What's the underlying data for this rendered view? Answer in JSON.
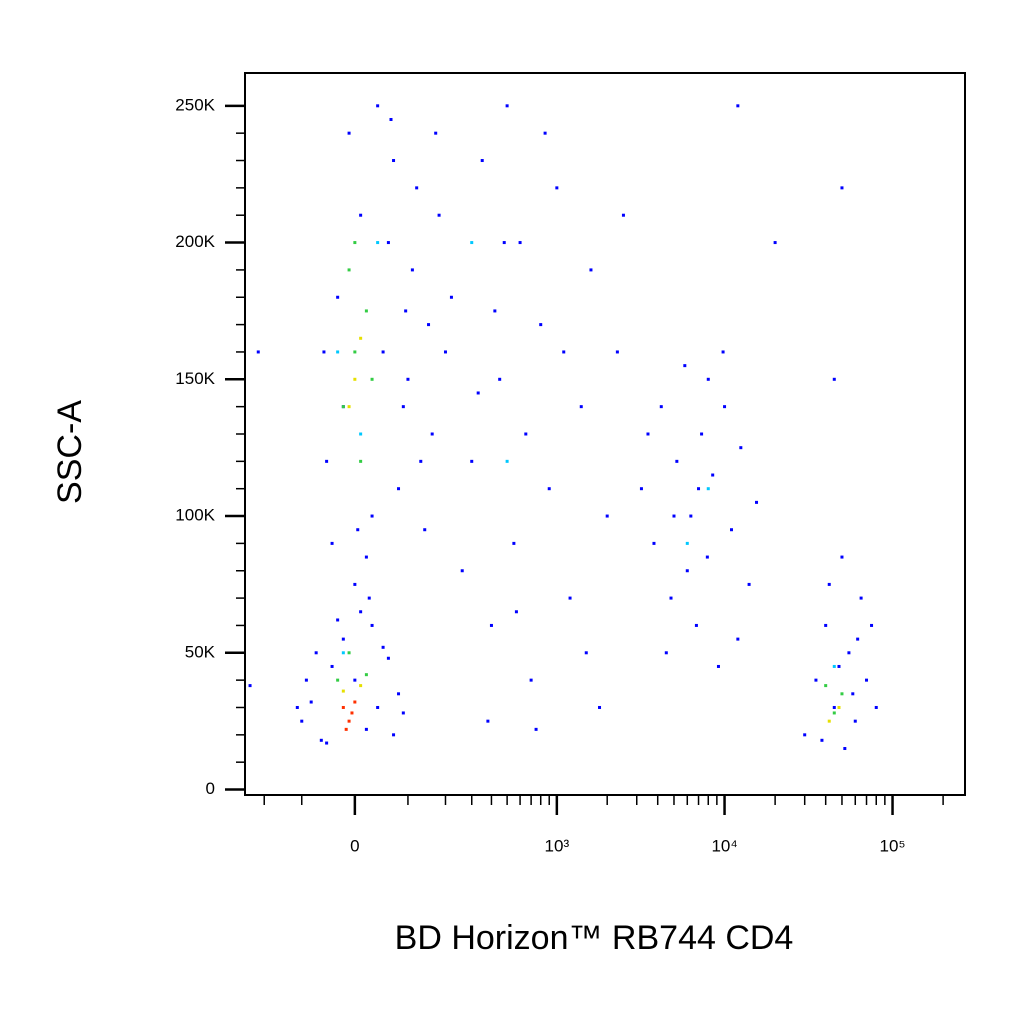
{
  "chart_data": {
    "type": "scatter",
    "x_label": "BD Horizon™ RB744 CD4",
    "y_label": "SSC-A",
    "xscale": "asinh",
    "xlim": [
      -270,
      270000
    ],
    "ylim": [
      -2000,
      262000
    ],
    "xticks": [
      0,
      {
        "value": 1000,
        "label": "10³"
      },
      {
        "value": 10000,
        "label": "10⁴"
      },
      {
        "value": 100000,
        "label": "10⁵"
      }
    ],
    "xminor_ticks": [
      -200,
      -100,
      100,
      200,
      300,
      400,
      500,
      600,
      700,
      800,
      900,
      2000,
      3000,
      4000,
      5000,
      6000,
      7000,
      8000,
      9000,
      20000,
      30000,
      40000,
      50000,
      60000,
      70000,
      80000,
      90000,
      200000
    ],
    "yticks": [
      0,
      {
        "value": 50000,
        "label": "50K"
      },
      {
        "value": 100000,
        "label": "100K"
      },
      {
        "value": 150000,
        "label": "150K"
      },
      {
        "value": 200000,
        "label": "200K"
      },
      {
        "value": 250000,
        "label": "250K"
      }
    ],
    "yminor_ticks": [
      10000,
      20000,
      30000,
      40000,
      60000,
      70000,
      80000,
      90000,
      110000,
      120000,
      130000,
      140000,
      160000,
      170000,
      180000,
      190000,
      210000,
      220000,
      230000,
      240000
    ],
    "series": [
      {
        "color": "#0000ff",
        "x": [
          -100,
          -80,
          -60,
          -40,
          -20,
          0,
          20,
          40,
          60,
          80,
          -90,
          -70,
          30,
          70,
          -50,
          10,
          50,
          90,
          -30,
          -110,
          -50,
          -30,
          -10,
          10,
          30,
          50,
          70,
          90,
          110,
          130,
          150,
          -40,
          0,
          20,
          40,
          60,
          80,
          100,
          120,
          -20,
          140,
          25,
          -55,
          65,
          95,
          160,
          180,
          200,
          170,
          5,
          220,
          300,
          350,
          400,
          450,
          500,
          550,
          600,
          700,
          800,
          900,
          1000,
          1200,
          1400,
          1600,
          1800,
          2000,
          2300,
          260,
          380,
          480,
          650,
          750,
          1100,
          1500,
          2500,
          330,
          420,
          570,
          850,
          3200,
          3800,
          4200,
          4800,
          5200,
          5800,
          6300,
          6800,
          7300,
          7900,
          8500,
          9200,
          10000,
          11000,
          12500,
          14000,
          15500,
          4500,
          6000,
          9800,
          3500,
          8000,
          5000,
          7000,
          12000,
          30000,
          35000,
          40000,
          45000,
          50000,
          55000,
          60000,
          65000,
          70000,
          80000,
          38000,
          48000,
          58000,
          42000,
          52000,
          62000,
          75000,
          50000,
          45000,
          20000,
          -250,
          -220,
          12000
        ],
        "y": [
          25000,
          32000,
          18000,
          45000,
          55000,
          40000,
          22000,
          30000,
          48000,
          35000,
          40000,
          50000,
          60000,
          20000,
          17000,
          65000,
          52000,
          28000,
          62000,
          30000,
          120000,
          180000,
          240000,
          210000,
          100000,
          160000,
          230000,
          140000,
          190000,
          120000,
          170000,
          90000,
          75000,
          85000,
          250000,
          200000,
          110000,
          150000,
          220000,
          140000,
          95000,
          70000,
          160000,
          245000,
          175000,
          130000,
          210000,
          160000,
          240000,
          95000,
          180000,
          120000,
          230000,
          60000,
          150000,
          250000,
          90000,
          200000,
          40000,
          170000,
          110000,
          220000,
          70000,
          140000,
          190000,
          30000,
          100000,
          160000,
          80000,
          25000,
          200000,
          130000,
          22000,
          160000,
          50000,
          210000,
          145000,
          175000,
          65000,
          240000,
          110000,
          90000,
          140000,
          70000,
          120000,
          155000,
          100000,
          60000,
          130000,
          85000,
          115000,
          45000,
          140000,
          95000,
          125000,
          75000,
          105000,
          50000,
          80000,
          160000,
          130000,
          150000,
          100000,
          110000,
          55000,
          20000,
          40000,
          60000,
          30000,
          85000,
          50000,
          25000,
          70000,
          40000,
          30000,
          18000,
          45000,
          35000,
          75000,
          15000,
          55000,
          60000,
          220000,
          150000,
          200000,
          38000,
          160000,
          250000
        ]
      },
      {
        "color": "#00c8ff",
        "x": [
          -30,
          10,
          40,
          -20,
          500,
          6000,
          45000,
          300,
          8000
        ],
        "y": [
          160000,
          130000,
          200000,
          50000,
          120000,
          90000,
          45000,
          200000,
          110000
        ]
      },
      {
        "color": "#33cc44",
        "x": [
          -20,
          0,
          20,
          10,
          -10,
          30,
          0,
          -30,
          20,
          -10,
          40000,
          50000,
          45000
        ],
        "y": [
          140000,
          160000,
          175000,
          120000,
          190000,
          150000,
          200000,
          40000,
          42000,
          50000,
          38000,
          35000,
          28000
        ]
      },
      {
        "color": "#e6e000",
        "x": [
          0,
          10,
          -10,
          -20,
          10,
          48000,
          42000
        ],
        "y": [
          150000,
          165000,
          140000,
          36000,
          38000,
          30000,
          25000
        ]
      },
      {
        "color": "#ff3000",
        "x": [
          -20,
          -10,
          0,
          -5,
          -15
        ],
        "y": [
          30000,
          25000,
          32000,
          28000,
          22000
        ]
      }
    ]
  }
}
